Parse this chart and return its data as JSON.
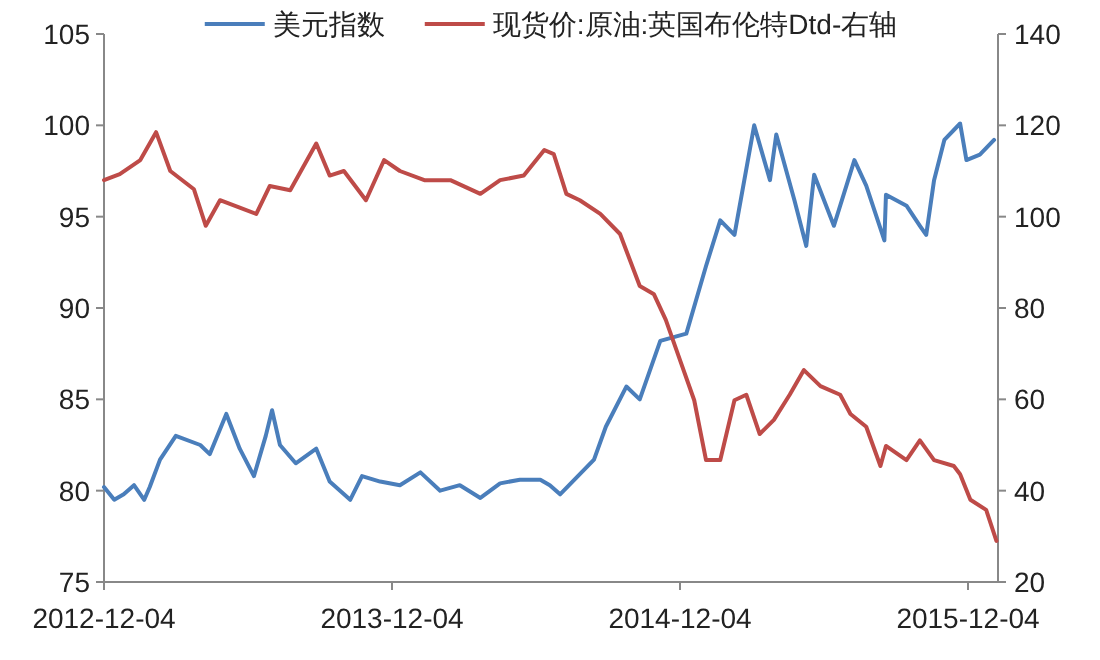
{
  "chart_data": {
    "type": "line",
    "legend": "top",
    "grid": false,
    "marker": "none",
    "line_style": "solid",
    "xlim": [
      "2012-12-04",
      "2016-01-11"
    ],
    "xticks": [
      "2012-12-04",
      "2013-12-04",
      "2014-12-04",
      "2015-12-04"
    ],
    "ylim": [
      75,
      105
    ],
    "yticks": [
      75,
      80,
      85,
      90,
      95,
      100,
      105
    ],
    "y2lim": [
      20,
      140
    ],
    "y2ticks": [
      20,
      40,
      60,
      80,
      100,
      120,
      140
    ],
    "series": [
      {
        "name": "美元指数",
        "color": "#4a7ebb",
        "x": [
          "2012-12-04",
          "2012-12-17",
          "2012-12-29",
          "2013-01-11",
          "2013-01-24",
          "2013-01-31",
          "2013-02-13",
          "2013-03-05",
          "2013-04-05",
          "2013-04-17",
          "2013-05-08",
          "2013-05-25",
          "2013-06-12",
          "2013-06-27",
          "2013-07-05",
          "2013-07-15",
          "2013-08-04",
          "2013-08-30",
          "2013-09-16",
          "2013-10-12",
          "2013-10-27",
          "2013-11-19",
          "2013-12-14",
          "2014-01-09",
          "2014-02-03",
          "2014-02-28",
          "2014-03-26",
          "2014-04-20",
          "2014-05-15",
          "2014-06-10",
          "2014-06-22",
          "2014-07-05",
          "2014-08-17",
          "2014-09-01",
          "2014-09-27",
          "2014-10-14",
          "2014-11-09",
          "2014-12-12",
          "2015-01-06",
          "2015-01-24",
          "2015-02-11",
          "2015-03-08",
          "2015-03-28",
          "2015-04-05",
          "2015-04-28",
          "2015-05-13",
          "2015-05-23",
          "2015-06-17",
          "2015-07-13",
          "2015-07-28",
          "2015-08-20",
          "2015-08-22",
          "2015-09-17",
          "2015-10-04",
          "2015-10-12",
          "2015-10-22",
          "2015-11-04",
          "2015-11-24",
          "2015-12-02",
          "2015-12-19",
          "2016-01-06"
        ],
        "values": [
          80.2,
          79.5,
          79.8,
          80.3,
          79.5,
          80.2,
          81.7,
          83,
          82.5,
          82,
          84.2,
          82.3,
          80.8,
          83,
          84.4,
          82.5,
          81.5,
          82.3,
          80.5,
          79.5,
          80.8,
          80.5,
          80.3,
          81,
          80,
          80.3,
          79.6,
          80.4,
          80.6,
          80.6,
          80.3,
          79.8,
          81.7,
          83.5,
          85.7,
          85,
          88.2,
          88.6,
          92.3,
          94.8,
          94,
          100,
          97,
          99.5,
          95.9,
          93.4,
          97.3,
          94.5,
          98.1,
          96.7,
          93.7,
          96.2,
          95.6,
          94.5,
          94,
          97,
          99.2,
          100.1,
          98.1,
          98.4,
          99.2
        ]
      },
      {
        "name": "现货价:原油:英国布伦特Dtd-右轴",
        "color": "#be4b48",
        "axis": "y2",
        "x": [
          "2012-12-04",
          "2012-12-24",
          "2013-01-19",
          "2013-02-08",
          "2013-02-26",
          "2013-03-28",
          "2013-04-12",
          "2013-04-30",
          "2013-05-25",
          "2013-06-15",
          "2013-07-02",
          "2013-07-28",
          "2013-08-30",
          "2013-09-16",
          "2013-10-04",
          "2013-11-01",
          "2013-11-24",
          "2013-12-14",
          "2014-01-14",
          "2014-02-16",
          "2014-03-26",
          "2014-04-20",
          "2014-05-20",
          "2014-06-15",
          "2014-06-27",
          "2014-07-13",
          "2014-07-30",
          "2014-08-25",
          "2014-09-19",
          "2014-10-14",
          "2014-11-01",
          "2014-11-16",
          "2014-12-04",
          "2014-12-22",
          "2015-01-06",
          "2015-01-24",
          "2015-02-11",
          "2015-02-26",
          "2015-03-15",
          "2015-04-02",
          "2015-04-22",
          "2015-05-10",
          "2015-05-31",
          "2015-06-25",
          "2015-07-08",
          "2015-07-28",
          "2015-08-15",
          "2015-08-22",
          "2015-09-17",
          "2015-10-04",
          "2015-10-22",
          "2015-11-16",
          "2015-11-24",
          "2015-12-07",
          "2015-12-27",
          "2016-01-09"
        ],
        "values": [
          108,
          109.3,
          112.4,
          118.5,
          110,
          106,
          98,
          103.6,
          102,
          100.6,
          106.7,
          105.8,
          116,
          109,
          110,
          103.6,
          112.4,
          110,
          108,
          108,
          105,
          108,
          109,
          114.6,
          113.7,
          105,
          103.6,
          100.6,
          96.2,
          84.8,
          83,
          77.4,
          68.6,
          59.8,
          46.7,
          46.7,
          59.8,
          61,
          52.4,
          55.5,
          61,
          66.4,
          62.9,
          61,
          56.8,
          54,
          45.4,
          49.8,
          46.7,
          51,
          46.7,
          45.4,
          43.6,
          38,
          35.8,
          29
        ]
      }
    ]
  }
}
